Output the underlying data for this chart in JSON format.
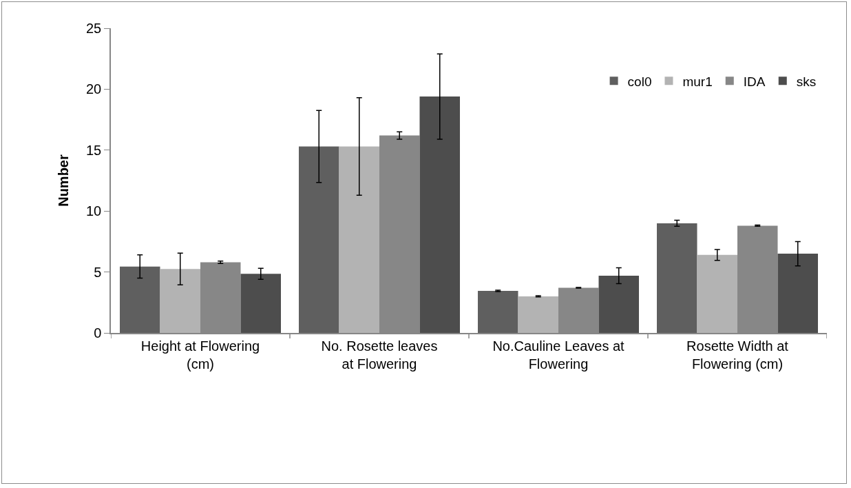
{
  "chart_data": {
    "type": "bar",
    "ylabel": "Number",
    "categories": [
      "Height at Flowering (cm)",
      "No. Rosette leaves at Flowering",
      "No.Cauline Leaves at Flowering",
      "Rosette Width at Flowering (cm)"
    ],
    "series": [
      {
        "name": "col0",
        "color": "#5f5f5f",
        "values": [
          5.45,
          15.3,
          3.45,
          9.0
        ],
        "errors": [
          0.95,
          2.95,
          0.05,
          0.25
        ]
      },
      {
        "name": "mur1",
        "color": "#b3b3b3",
        "values": [
          5.25,
          15.3,
          3.0,
          6.4
        ],
        "errors": [
          1.3,
          4.0,
          0.05,
          0.45
        ]
      },
      {
        "name": "IDA",
        "color": "#878787",
        "values": [
          5.8,
          16.2,
          3.7,
          8.8
        ],
        "errors": [
          0.1,
          0.3,
          0.03,
          0.05
        ]
      },
      {
        "name": "sks",
        "color": "#4d4d4d",
        "values": [
          4.85,
          19.4,
          4.7,
          6.5
        ],
        "errors": [
          0.45,
          3.5,
          0.65,
          1.0
        ]
      }
    ],
    "ylim": [
      0,
      25
    ],
    "yticks": [
      0,
      5,
      10,
      15,
      20,
      25
    ],
    "grid": false,
    "legend": "top right"
  }
}
